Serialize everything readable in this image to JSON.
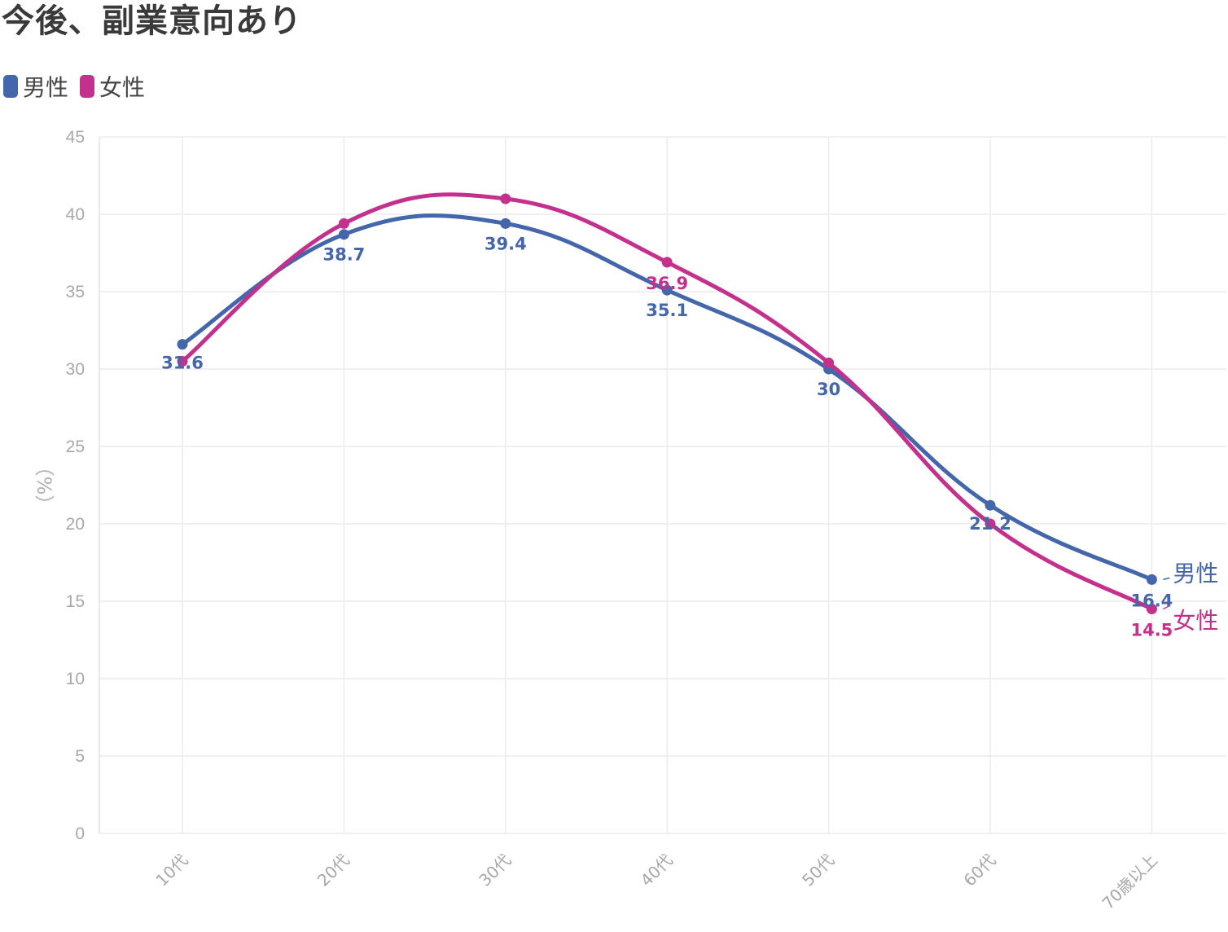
{
  "title": "今後、副業意向あり",
  "legend": [
    {
      "label": "男性",
      "color": "#4466aa"
    },
    {
      "label": "女性",
      "color": "#c4318c"
    }
  ],
  "chart_data": {
    "type": "line",
    "title": "今後、副業意向あり",
    "ylabel": "（%）",
    "xlabel": "",
    "categories": [
      "10代",
      "20代",
      "30代",
      "40代",
      "50代",
      "60代",
      "70歳以上"
    ],
    "ylim": [
      0,
      45
    ],
    "yticks": [
      "0",
      "5",
      "10",
      "15",
      "20",
      "25",
      "30",
      "35",
      "40",
      "45"
    ],
    "grid": true,
    "legend_position": "top-left",
    "series": [
      {
        "name": "男性",
        "color": "#4466aa",
        "values": [
          31.6,
          38.7,
          39.4,
          35.1,
          30,
          21.2,
          16.4
        ],
        "labels": [
          "31.6",
          "38.7",
          "39.4",
          "35.1",
          "30",
          "21.2",
          "16.4"
        ],
        "label_on": [
          true,
          true,
          true,
          true,
          true,
          true,
          true
        ]
      },
      {
        "name": "女性",
        "color": "#c4318c",
        "values": [
          30.5,
          39.4,
          41,
          36.9,
          30.4,
          20,
          14.5
        ],
        "labels": [
          "36.9",
          "14.5"
        ],
        "label_on": [
          false,
          false,
          false,
          true,
          false,
          false,
          true
        ]
      }
    ]
  }
}
